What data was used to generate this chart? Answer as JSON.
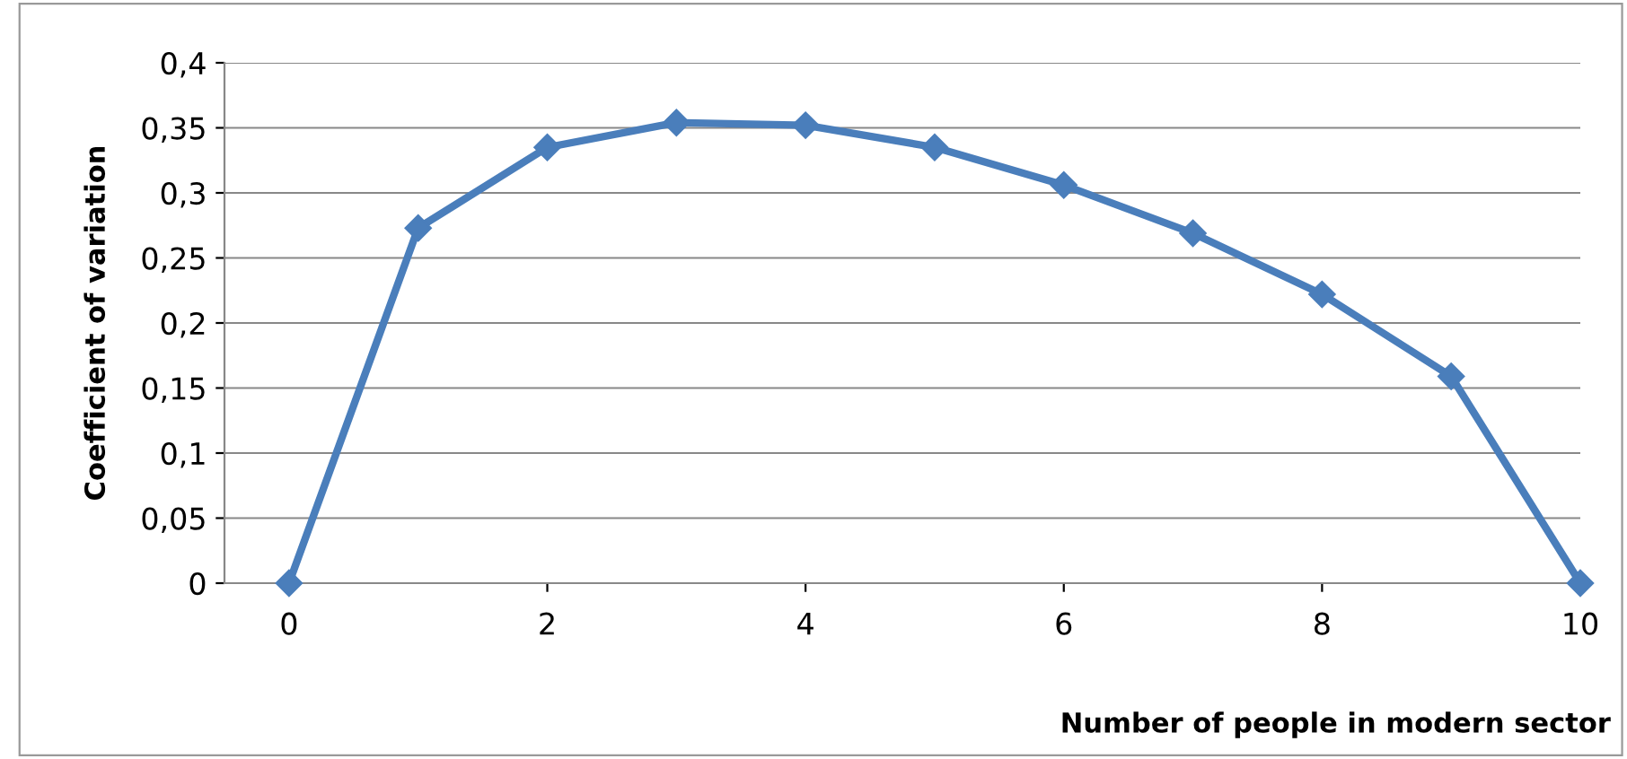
{
  "chart_data": {
    "type": "line",
    "xlabel": "Number of people in modern sector",
    "ylabel": "Coefficient of variation",
    "x": [
      0,
      1,
      2,
      3,
      4,
      5,
      6,
      7,
      8,
      9,
      10
    ],
    "series": [
      {
        "color": "#4a7ebb",
        "values": [
          0,
          0.273,
          0.335,
          0.354,
          0.352,
          0.335,
          0.306,
          0.269,
          0.222,
          0.159,
          0
        ]
      }
    ],
    "xlim": [
      -0.5,
      10
    ],
    "xticks": [
      0,
      2,
      4,
      6,
      8,
      10
    ],
    "ylim": [
      0,
      0.4
    ],
    "yticks": [
      0,
      {
        "value": 0.05,
        "label": "0,05"
      },
      {
        "value": 0.1,
        "label": "0,1"
      },
      {
        "value": 0.15,
        "label": "0,15"
      },
      {
        "value": 0.2,
        "label": "0,2"
      },
      {
        "value": 0.25,
        "label": "0,25"
      },
      {
        "value": 0.3,
        "label": "0,3"
      },
      {
        "value": 0.35,
        "label": "0,35"
      },
      {
        "value": 0.4,
        "label": "0,4"
      }
    ],
    "grid": "y",
    "marker": "diamond",
    "line_style": "solid",
    "legend": false
  }
}
